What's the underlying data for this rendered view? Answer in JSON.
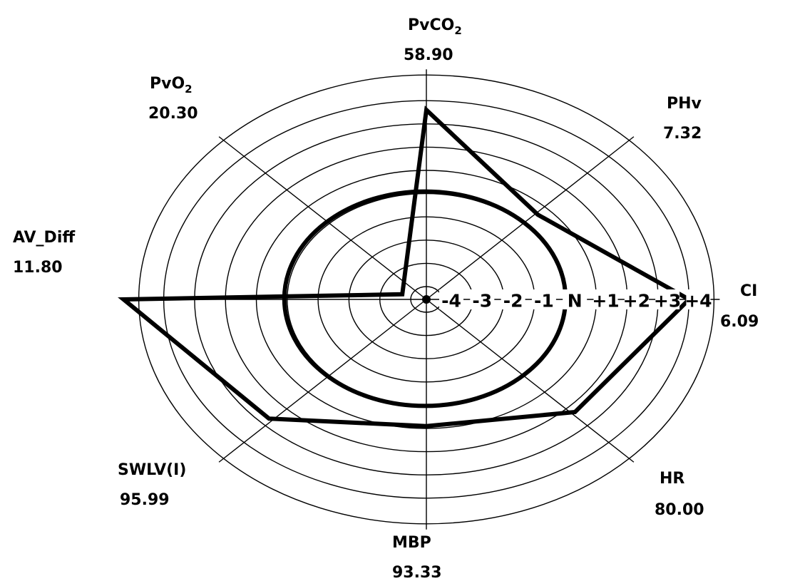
{
  "chart_data": {
    "type": "radar",
    "scale_labels": [
      "-4",
      "-3",
      "-2",
      "-1",
      "N",
      "+1",
      "+2",
      "+3",
      "+4"
    ],
    "normal_level": "N",
    "axes": [
      {
        "key": "CI",
        "label": "CI",
        "value_text": "6.09",
        "score": 4.0
      },
      {
        "key": "PHv",
        "label": "PHv",
        "value_text": "7.32",
        "score": 0.6
      },
      {
        "key": "PvCO2",
        "label": "PvCO",
        "subscript": "2",
        "value_text": "58.90",
        "score": 3.6
      },
      {
        "key": "PvO2",
        "label": "PvO",
        "subscript": "2",
        "value_text": "20.30",
        "score": -4.0
      },
      {
        "key": "AV_Diff",
        "label": "AV_Diff",
        "value_text": "11.80",
        "score": 5.3
      },
      {
        "key": "SWLV",
        "label": "SWLV(I)",
        "value_text": "95.99",
        "score": 2.7
      },
      {
        "key": "MBP",
        "label": "MBP",
        "value_text": "93.33",
        "score": 0.9
      },
      {
        "key": "HR",
        "label": "HR",
        "value_text": "80.00",
        "score": 2.3
      }
    ],
    "extra_point": {
      "after_axis": "PvO2",
      "score": -3.7,
      "note_axis_angle_offset": -45
    },
    "min_score": -4,
    "max_score": 4,
    "legend": "none",
    "grid": true
  }
}
